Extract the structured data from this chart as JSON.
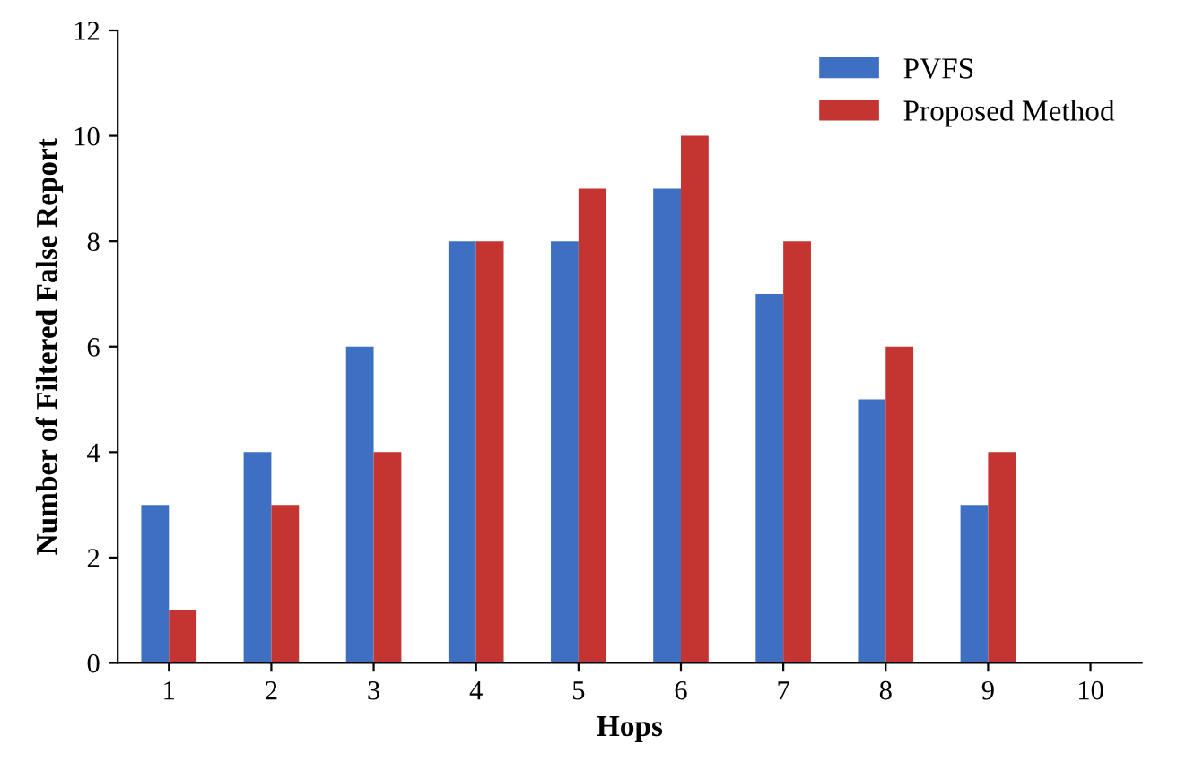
{
  "chart_data": {
    "type": "bar",
    "xlabel": "Hops",
    "ylabel": "Number of Filtered False Report",
    "categories": [
      "1",
      "2",
      "3",
      "4",
      "5",
      "6",
      "7",
      "8",
      "9",
      "10"
    ],
    "series": [
      {
        "name": "PVFS",
        "color": "#3d6fc2",
        "values": [
          3,
          4,
          6,
          8,
          8,
          9,
          7,
          5,
          3,
          0
        ]
      },
      {
        "name": "Proposed Method",
        "color": "#c43431",
        "values": [
          1,
          3,
          4,
          8,
          9,
          10,
          8,
          6,
          4,
          0
        ]
      }
    ],
    "ylim": [
      0,
      12
    ],
    "yticks": [
      0,
      2,
      4,
      6,
      8,
      10,
      12
    ],
    "grid": false,
    "legend": "top right"
  }
}
